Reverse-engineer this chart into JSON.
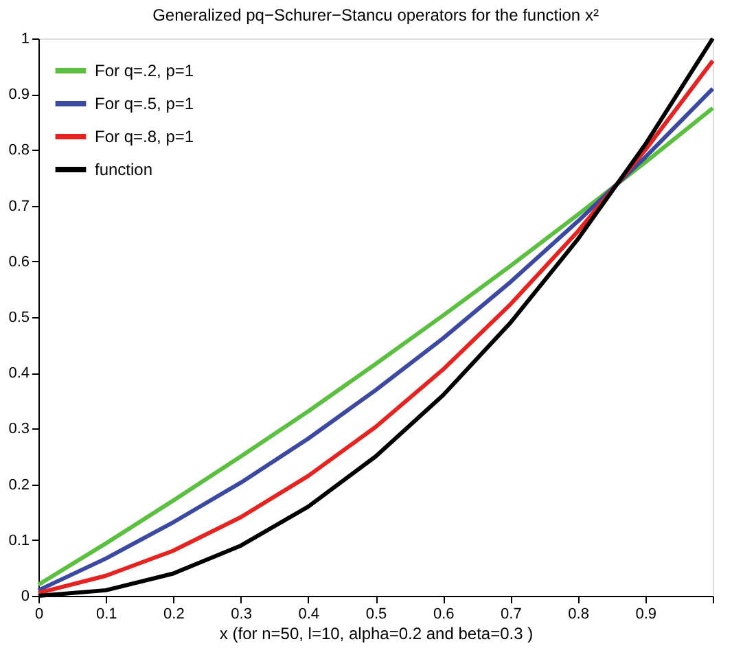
{
  "chart_data": {
    "type": "line",
    "title": "Generalized pq−Schurer−Stancu operators for the function x²",
    "xlabel": "x (for n=50, l=10, alpha=0.2 and beta=0.3 )",
    "x": [
      0,
      0.1,
      0.2,
      0.3,
      0.4,
      0.5,
      0.6,
      0.7,
      0.8,
      0.9,
      1
    ],
    "series": [
      {
        "name": "For q=.2, p=1",
        "color": "#5bbf3f",
        "values": [
          0.02,
          0.094,
          0.171,
          0.25,
          0.331,
          0.416,
          0.503,
          0.592,
          0.684,
          0.778,
          0.875
        ]
      },
      {
        "name": "For q=.5, p=1",
        "color": "#3b4aa0",
        "values": [
          0.01,
          0.067,
          0.132,
          0.203,
          0.282,
          0.369,
          0.462,
          0.563,
          0.672,
          0.787,
          0.91
        ]
      },
      {
        "name": "For q=.8, p=1",
        "color": "#e52421",
        "values": [
          0.005,
          0.036,
          0.081,
          0.141,
          0.215,
          0.303,
          0.406,
          0.523,
          0.654,
          0.8,
          0.96
        ]
      },
      {
        "name": "function",
        "color": "#000000",
        "values": [
          0,
          0.01,
          0.04,
          0.09,
          0.16,
          0.25,
          0.36,
          0.49,
          0.64,
          0.81,
          1
        ]
      }
    ],
    "xlim": [
      0,
      1
    ],
    "ylim": [
      0,
      1
    ],
    "xticks": [
      0,
      0.1,
      0.2,
      0.3,
      0.4,
      0.5,
      0.6,
      0.7,
      0.8,
      0.9,
      {
        "value": 1,
        "label": null
      }
    ],
    "yticks": [
      0,
      0.1,
      0.2,
      0.3,
      0.4,
      0.5,
      0.6,
      0.7,
      0.8,
      0.9,
      1
    ],
    "grid": false,
    "legend": "top left",
    "line_style": "solid",
    "marker": "none"
  }
}
